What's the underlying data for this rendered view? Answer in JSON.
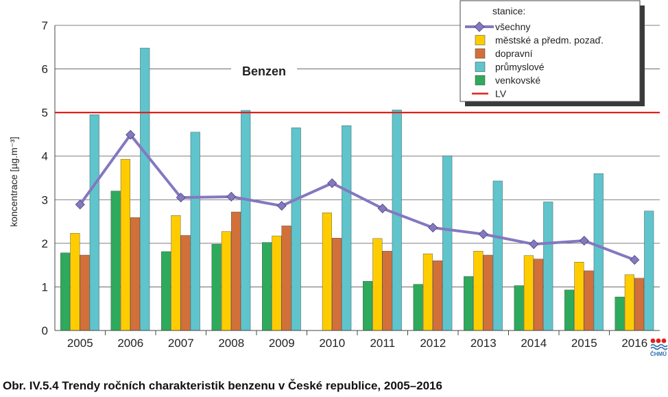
{
  "chart_data": {
    "type": "bar",
    "title": "Benzen",
    "ylabel": "koncentrace [µg.m⁻³]",
    "ylim": [
      0,
      7
    ],
    "yticks": [
      "0",
      "1",
      "2",
      "3",
      "4",
      "5",
      "6",
      "7"
    ],
    "grid": true,
    "categories": [
      "2005",
      "2006",
      "2007",
      "2008",
      "2009",
      "2010",
      "2011",
      "2012",
      "2013",
      "2014",
      "2015",
      "2016"
    ],
    "series": [
      {
        "name": "venkovské",
        "kind": "bar",
        "color": "#2eaa5c",
        "values": [
          1.78,
          3.2,
          1.81,
          1.98,
          2.02,
          null,
          1.13,
          1.06,
          1.24,
          1.03,
          0.93,
          0.77
        ]
      },
      {
        "name": "městské a předm. pozaď.",
        "kind": "bar",
        "color": "#ffcc00",
        "values": [
          2.23,
          3.93,
          2.64,
          2.27,
          2.17,
          2.7,
          2.11,
          1.76,
          1.82,
          1.72,
          1.57,
          1.28
        ]
      },
      {
        "name": "dopravní",
        "kind": "bar",
        "color": "#d2703a",
        "values": [
          1.73,
          2.59,
          2.18,
          2.72,
          2.4,
          2.12,
          1.82,
          1.6,
          1.73,
          1.64,
          1.37,
          1.2
        ]
      },
      {
        "name": "průmyslové",
        "kind": "bar",
        "color": "#5fc4cc",
        "values": [
          4.95,
          6.48,
          4.55,
          5.05,
          4.65,
          4.7,
          5.06,
          4.01,
          3.43,
          2.95,
          3.6,
          2.74
        ]
      },
      {
        "name": "všechny",
        "kind": "line",
        "color": "#8478c0",
        "values": [
          2.89,
          4.49,
          3.05,
          3.07,
          2.86,
          3.38,
          2.8,
          2.36,
          2.21,
          1.98,
          2.06,
          1.62
        ]
      }
    ],
    "limit": {
      "name": "LV",
      "value": 5,
      "color": "#e0201b"
    },
    "legend": {
      "position": "top-right",
      "heading": "stanice:",
      "items": [
        {
          "label": "všechny",
          "symbol": "line-marker",
          "color": "#8478c0"
        },
        {
          "label": "městské a předm. pozaď.",
          "symbol": "box",
          "color": "#ffcc00"
        },
        {
          "label": "dopravní",
          "symbol": "box",
          "color": "#d2703a"
        },
        {
          "label": "průmyslové",
          "symbol": "box",
          "color": "#5fc4cc"
        },
        {
          "label": "venkovské",
          "symbol": "box",
          "color": "#2eaa5c"
        },
        {
          "label": "LV",
          "symbol": "line",
          "color": "#e0201b"
        }
      ]
    }
  },
  "caption": "Obr. IV.5.4  Trendy ročních charakteristik benzenu v České republice, 2005–2016",
  "logo": {
    "text": "ČHMÚ",
    "icon": "chmu-logo-icon"
  }
}
